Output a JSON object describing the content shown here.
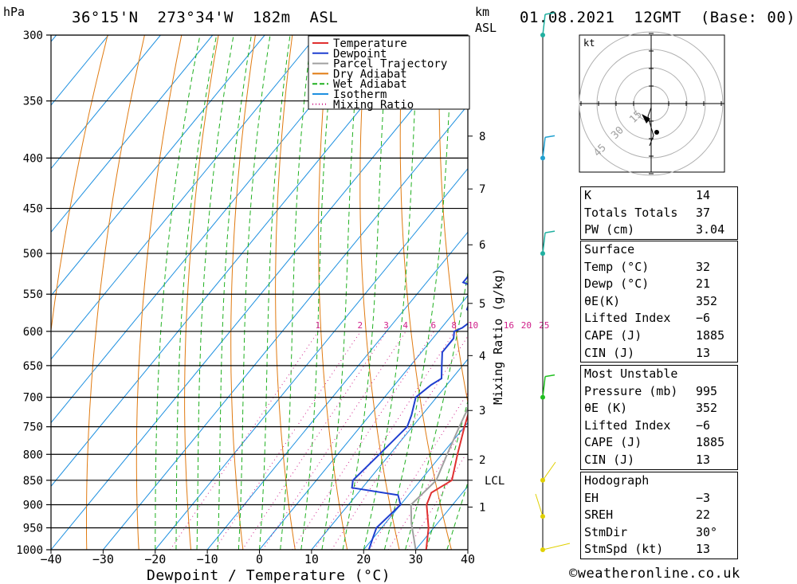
{
  "header": {
    "pressure_unit": "hPa",
    "location": "36°15'N  273°34'W  182m  ASL",
    "km_label": "km",
    "asl_label": "ASL",
    "datetime": "01.08.2021  12GMT  (Base: 00)"
  },
  "chart_data": {
    "type": "line",
    "title": "",
    "xlabel": "Dewpoint / Temperature (°C)",
    "ylabel": "hPa",
    "mixing_ratio_axis_label": "Mixing Ratio (g/kg)",
    "x_ticks": [
      "−40",
      "−30",
      "−20",
      "−10",
      "0",
      "10",
      "20",
      "30",
      "40"
    ],
    "x_tick_values": [
      -40,
      -30,
      -20,
      -10,
      0,
      10,
      20,
      30,
      40
    ],
    "pressure_levels": [
      300,
      350,
      400,
      450,
      500,
      550,
      600,
      650,
      700,
      750,
      800,
      850,
      900,
      950,
      1000
    ],
    "height_km_labels": [
      {
        "km": "8",
        "p": 380
      },
      {
        "km": "7",
        "p": 430
      },
      {
        "km": "6",
        "p": 490
      },
      {
        "km": "5",
        "p": 562
      },
      {
        "km": "4",
        "p": 635
      },
      {
        "km": "3",
        "p": 722
      },
      {
        "km": "2",
        "p": 810
      },
      {
        "km": "1",
        "p": 905
      }
    ],
    "lcl_label": "LCL",
    "lcl_pressure": 850,
    "mixing_ratio_labels": [
      "1",
      "2",
      "3",
      "4",
      "6",
      "8",
      "10",
      "16",
      "20",
      "25"
    ],
    "mixing_ratio_values": [
      1,
      2,
      3,
      4,
      6,
      8,
      10,
      16,
      20,
      25
    ],
    "legend": [
      "Temperature",
      "Dewpoint",
      "Parcel Trajectory",
      "Dry Adiabat",
      "Wet Adiabat",
      "Isotherm",
      "Mixing Ratio"
    ],
    "colors": {
      "temperature": "#e03030",
      "dewpoint": "#1f3fd0",
      "parcel": "#a0a0a0",
      "dry_adiabat": "#e07a10",
      "wet_adiabat": "#20b020",
      "isotherm": "#1e90e0",
      "mixing_ratio": "#d0208a"
    },
    "series": [
      {
        "name": "Temperature",
        "points": [
          [
            32,
            1000
          ],
          [
            29,
            950
          ],
          [
            25,
            900
          ],
          [
            24,
            875
          ],
          [
            26,
            850
          ],
          [
            23,
            800
          ],
          [
            20,
            750
          ],
          [
            17,
            700
          ],
          [
            15,
            650
          ],
          [
            14,
            620
          ],
          [
            13,
            600
          ],
          [
            12,
            580
          ],
          [
            10,
            550
          ],
          [
            8,
            530
          ],
          [
            6,
            510
          ],
          [
            5,
            500
          ],
          [
            5,
            480
          ],
          [
            3,
            450
          ],
          [
            2,
            420
          ],
          [
            0,
            400
          ],
          [
            -1,
            390
          ],
          [
            -3,
            380
          ],
          [
            -8,
            350
          ],
          [
            -14,
            325
          ],
          [
            -20,
            300
          ]
        ]
      },
      {
        "name": "Dewpoint",
        "points": [
          [
            21,
            1000
          ],
          [
            20,
            975
          ],
          [
            19,
            950
          ],
          [
            20,
            900
          ],
          [
            18,
            880
          ],
          [
            8,
            865
          ],
          [
            7,
            850
          ],
          [
            8,
            800
          ],
          [
            9,
            750
          ],
          [
            8,
            730
          ],
          [
            6,
            700
          ],
          [
            7,
            680
          ],
          [
            8,
            670
          ],
          [
            6,
            650
          ],
          [
            4,
            630
          ],
          [
            4,
            610
          ],
          [
            3,
            600
          ],
          [
            4,
            595
          ],
          [
            5,
            580
          ],
          [
            2,
            570
          ],
          [
            1,
            555
          ],
          [
            2,
            545
          ],
          [
            -3,
            535
          ],
          [
            -3,
            525
          ],
          [
            -1,
            515
          ],
          [
            -1,
            505
          ],
          [
            -2,
            498
          ],
          [
            -4,
            490
          ],
          [
            -5,
            475
          ],
          [
            -7,
            455
          ],
          [
            -9,
            435
          ],
          [
            -11,
            420
          ],
          [
            -18,
            410
          ],
          [
            -20,
            390
          ],
          [
            -19,
            380
          ],
          [
            -21,
            350
          ],
          [
            -26,
            320
          ],
          [
            -30,
            300
          ]
        ]
      },
      {
        "name": "Parcel Trajectory",
        "points": [
          [
            30,
            1000
          ],
          [
            25,
            940
          ],
          [
            22,
            900
          ],
          [
            23,
            850
          ],
          [
            21,
            800
          ],
          [
            19,
            750
          ],
          [
            17,
            700
          ],
          [
            15,
            650
          ],
          [
            13,
            600
          ],
          [
            11,
            550
          ],
          [
            8,
            500
          ],
          [
            5,
            450
          ],
          [
            2,
            400
          ],
          [
            -1,
            370
          ]
        ]
      }
    ],
    "xlim": [
      -40,
      40
    ],
    "ylim": [
      1000,
      300
    ]
  },
  "hodograph": {
    "unit_label": "kt",
    "ring_labels": [
      "15",
      "30",
      "45"
    ]
  },
  "table1": [
    {
      "label": "K",
      "value": "14"
    },
    {
      "label": "Totals Totals",
      "value": "37"
    },
    {
      "label": "PW (cm)",
      "value": "3.04"
    }
  ],
  "surface": {
    "title": "Surface",
    "rows": [
      {
        "label": "Temp (°C)",
        "value": "32"
      },
      {
        "label": "Dewp (°C)",
        "value": "21"
      },
      {
        "label": "θE(K)",
        "value": "352"
      },
      {
        "label": "Lifted Index",
        "value": "−6"
      },
      {
        "label": "CAPE (J)",
        "value": "1885"
      },
      {
        "label": "CIN (J)",
        "value": "13"
      }
    ]
  },
  "most_unstable": {
    "title": "Most Unstable",
    "rows": [
      {
        "label": "Pressure (mb)",
        "value": "995"
      },
      {
        "label": "θE (K)",
        "value": "352"
      },
      {
        "label": "Lifted Index",
        "value": "−6"
      },
      {
        "label": "CAPE (J)",
        "value": "1885"
      },
      {
        "label": "CIN (J)",
        "value": "13"
      }
    ]
  },
  "hodograph_table": {
    "title": "Hodograph",
    "rows": [
      {
        "label": "EH",
        "value": "−3"
      },
      {
        "label": "SREH",
        "value": "22"
      },
      {
        "label": "StmDir",
        "value": "30°"
      },
      {
        "label": "StmSpd (kt)",
        "value": "13"
      }
    ]
  },
  "copyright": "©weatheronline.co.uk"
}
